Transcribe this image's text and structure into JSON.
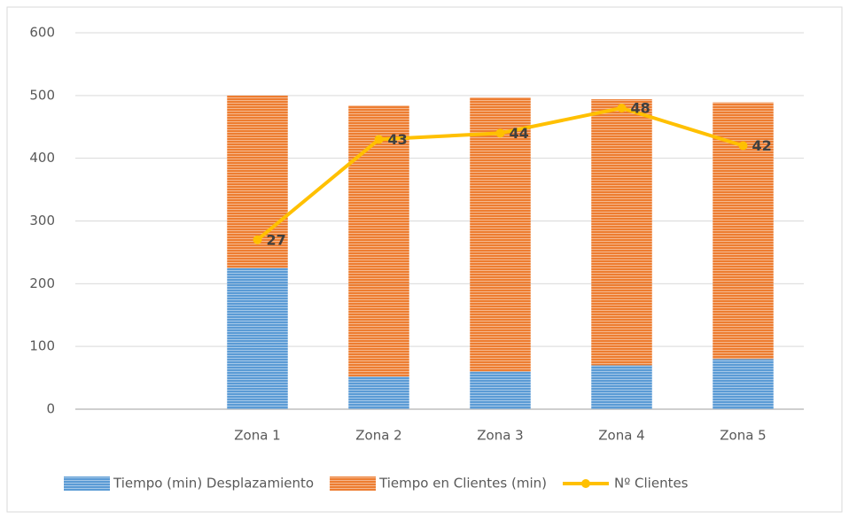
{
  "chart_data": {
    "type": "bar",
    "stacked": true,
    "categories": [
      null,
      "Zona 1",
      "Zona 2",
      "Zona 3",
      "Zona 4",
      "Zona 5"
    ],
    "series": [
      {
        "name": "Tiempo (min) Desplazamiento",
        "color": "#5b9bd5",
        "values": [
          null,
          225,
          52,
          60,
          70,
          80
        ]
      },
      {
        "name": "Tiempo en Clientes (min)",
        "color": "#ed7d31",
        "values": [
          null,
          275,
          432,
          437,
          424,
          409
        ]
      },
      {
        "name": "Nº Clientes",
        "type": "line",
        "axis": "y2",
        "color": "#ffc000",
        "values": [
          null,
          27,
          43,
          44,
          48,
          42
        ]
      }
    ],
    "ylim": [
      0,
      600
    ],
    "yticks": [
      0,
      100,
      200,
      300,
      400,
      500,
      600
    ],
    "y2lim": [
      0,
      60
    ],
    "grid": true,
    "legend": "bottom"
  }
}
